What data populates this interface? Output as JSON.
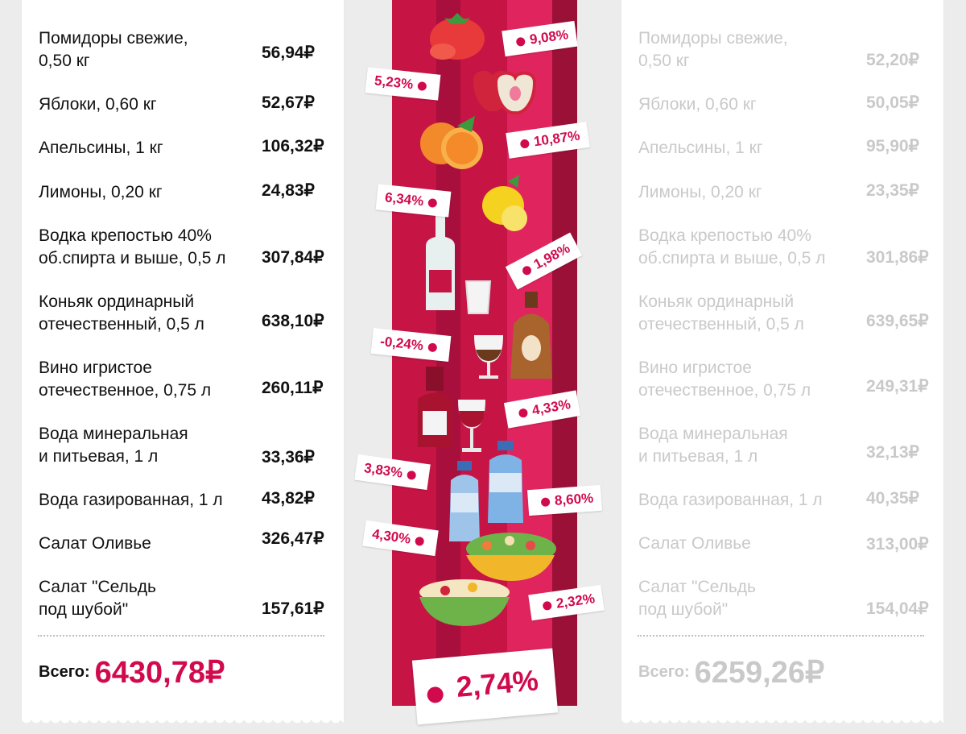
{
  "left_receipt": {
    "items": [
      {
        "name": "Помидоры свежие,\n0,50 кг",
        "price": "56,94₽"
      },
      {
        "name": "Яблоки, 0,60 кг",
        "price": "52,67₽"
      },
      {
        "name": "Апельсины, 1 кг",
        "price": "106,32₽"
      },
      {
        "name": "Лимоны, 0,20 кг",
        "price": "24,83₽"
      },
      {
        "name": "Водка крепостью 40%\nоб.спирта и выше, 0,5 л",
        "price": "307,84₽"
      },
      {
        "name": "Коньяк ординарный\nотечественный, 0,5 л",
        "price": "638,10₽"
      },
      {
        "name": "Вино игристое\nотечественное, 0,75 л",
        "price": "260,11₽"
      },
      {
        "name": "Вода минеральная\nи питьевая, 1 л",
        "price": "33,36₽"
      },
      {
        "name": "Вода газированная, 1 л",
        "price": "43,82₽"
      },
      {
        "name": "Салат Оливье",
        "price": "326,47₽"
      },
      {
        "name": "Салат \"Сельдь\nпод шубой\"",
        "price": "157,61₽"
      }
    ],
    "total_label": "Всего:",
    "total_value": "6430,78₽"
  },
  "right_receipt": {
    "items": [
      {
        "name": "Помидоры свежие,\n0,50 кг",
        "price": "52,20₽"
      },
      {
        "name": "Яблоки, 0,60 кг",
        "price": "50,05₽"
      },
      {
        "name": "Апельсины, 1 кг",
        "price": "95,90₽"
      },
      {
        "name": "Лимоны, 0,20 кг",
        "price": "23,35₽"
      },
      {
        "name": "Водка крепостью 40%\nоб.спирта и выше, 0,5 л",
        "price": "301,86₽"
      },
      {
        "name": "Коньяк ординарный\nотечественный, 0,5 л",
        "price": "639,65₽"
      },
      {
        "name": "Вино игристое\nотечественное, 0,75 л",
        "price": "249,31₽"
      },
      {
        "name": "Вода минеральная\nи питьевая, 1 л",
        "price": "32,13₽"
      },
      {
        "name": "Вода газированная, 1 л",
        "price": "40,35₽"
      },
      {
        "name": "Салат Оливье",
        "price": "313,00₽"
      },
      {
        "name": "Салат \"Сельдь\nпод шубой\"",
        "price": "154,04₽"
      }
    ],
    "total_label": "Всего:",
    "total_value": "6259,26₽"
  },
  "tags": [
    {
      "label": "9,08%"
    },
    {
      "label": "5,23%"
    },
    {
      "label": "10,87%"
    },
    {
      "label": "6,34%"
    },
    {
      "label": "1,98%"
    },
    {
      "label": "-0,24%"
    },
    {
      "label": "4,33%"
    },
    {
      "label": "3,83%"
    },
    {
      "label": "8,60%"
    },
    {
      "label": "4,30%"
    },
    {
      "label": "2,32%"
    }
  ],
  "total_change": "2,74%",
  "colors": {
    "accent": "#d10a4d",
    "band": "#c61445",
    "muted_text": "#c9c9c9"
  },
  "icons": [
    "tomato-icon",
    "apple-icon",
    "orange-icon",
    "lemon-icon",
    "vodka-bottle-icon",
    "shot-glass-icon",
    "cognac-bottle-icon",
    "brandy-glass-icon",
    "wine-bottle-icon",
    "wine-glass-icon",
    "water-bottle-icon",
    "sparkling-water-bottle-icon",
    "olivier-salad-icon",
    "herring-salad-icon"
  ]
}
